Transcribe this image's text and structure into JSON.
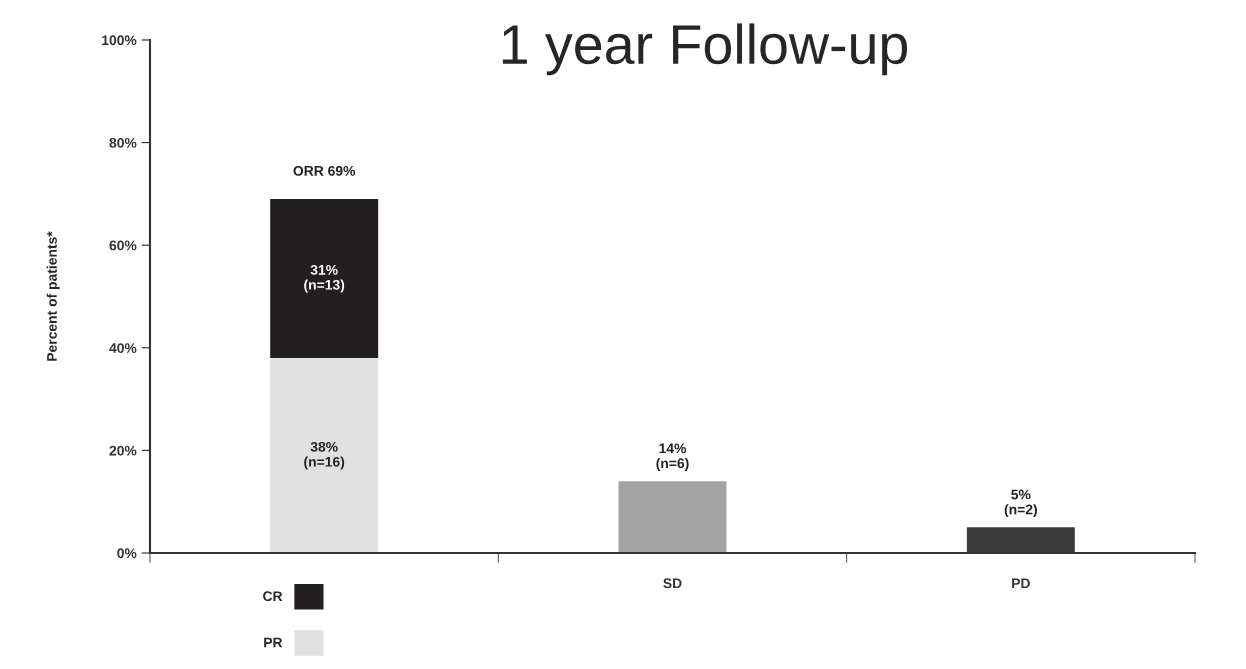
{
  "chart_data": {
    "type": "bar",
    "title": "1 year Follow-up",
    "ylabel": "Percent of patients*",
    "categories": [
      null,
      "SD",
      "PD"
    ],
    "stacked": true,
    "series": [
      {
        "name": "PR",
        "color": "#e1e1e1",
        "values": [
          38,
          null,
          null
        ],
        "value_labels": [
          "38%\n(n=16)",
          null,
          null
        ]
      },
      {
        "name": "CR",
        "color": "#231f20",
        "values": [
          31,
          null,
          null
        ],
        "value_labels": [
          "31%\n(n=13)",
          null,
          null
        ]
      },
      {
        "colors": [
          null,
          "#a3a3a3",
          "#3b3b3b"
        ],
        "values": [
          null,
          14,
          5
        ],
        "value_labels": [
          null,
          "14%\n(n=6)",
          "5%\n(n=2)"
        ]
      }
    ],
    "annotations": [
      {
        "text": "ORR 69%",
        "y": 69
      }
    ],
    "ylim": [
      0,
      100
    ],
    "yticks": [
      {
        "value": 0,
        "label": "0%"
      },
      {
        "value": 20,
        "label": "20%"
      },
      {
        "value": 40,
        "label": "40%"
      },
      {
        "value": 60,
        "label": "60%"
      },
      {
        "value": 80,
        "label": "80%"
      },
      {
        "value": 100,
        "label": "100%"
      }
    ],
    "grid": false,
    "legend": "bottom left"
  }
}
